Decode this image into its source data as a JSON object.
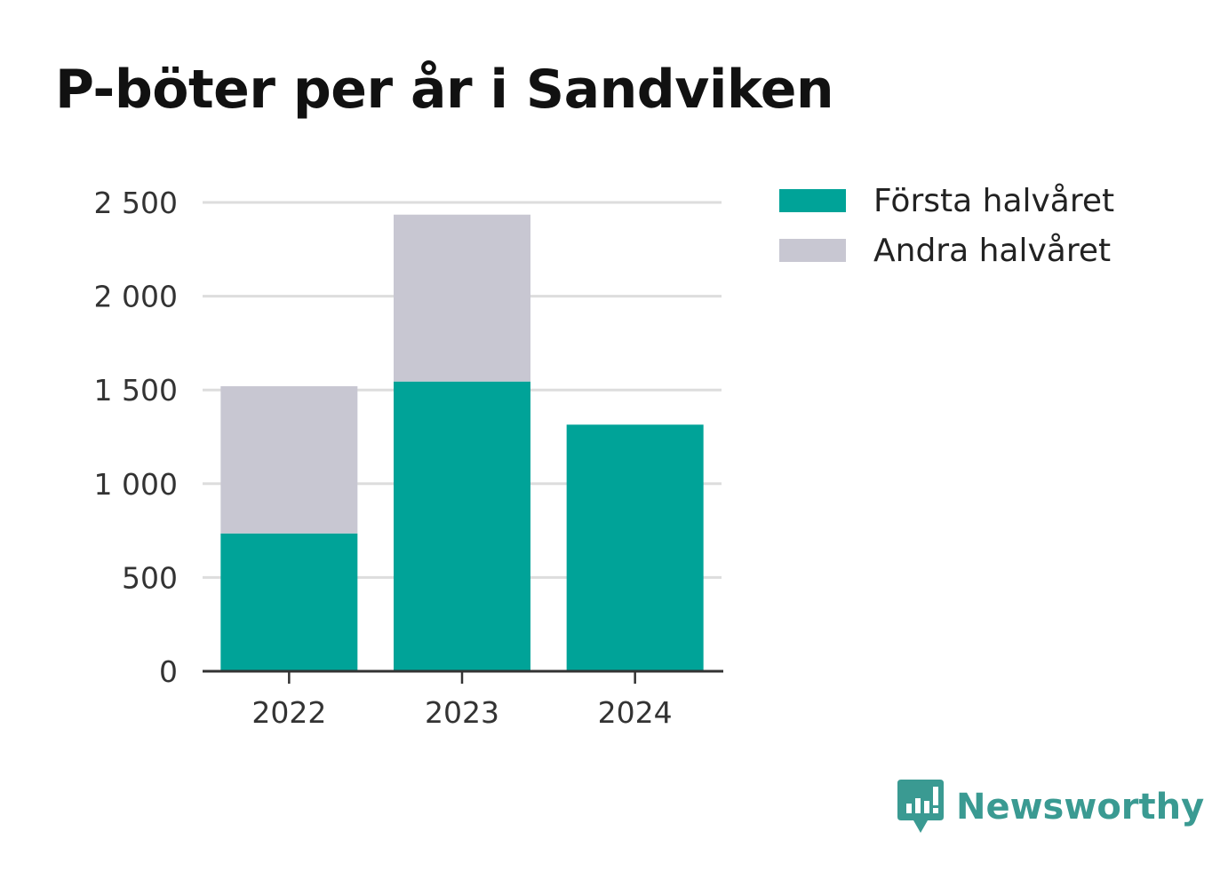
{
  "title": "P-böter per år i Sandviken",
  "colors": {
    "first_half": "#00a398",
    "second_half": "#c8c7d2",
    "brand": "#3a9a92",
    "grid": "#dddddd",
    "axis": "#333333",
    "text": "#333333"
  },
  "legend": [
    {
      "label": "Första halvåret",
      "color": "#00a398"
    },
    {
      "label": "Andra halvåret",
      "color": "#c8c7d2"
    }
  ],
  "brand": {
    "name": "Newsworthy",
    "icon": "newsworthy-logo-icon"
  },
  "chart_data": {
    "type": "bar",
    "stacked": true,
    "categories": [
      "2022",
      "2023",
      "2024"
    ],
    "series": [
      {
        "name": "Första halvåret",
        "values": [
          735,
          1545,
          1315
        ]
      },
      {
        "name": "Andra halvåret",
        "values": [
          785,
          890,
          0
        ]
      }
    ],
    "ylim": [
      0,
      2500
    ],
    "yticks": [
      0,
      500,
      1000,
      1500,
      2000,
      2500
    ],
    "ytick_labels": [
      "0",
      "500",
      "1 000",
      "1 500",
      "2 000",
      "2 500"
    ],
    "grid": true,
    "legend_position": "right"
  }
}
